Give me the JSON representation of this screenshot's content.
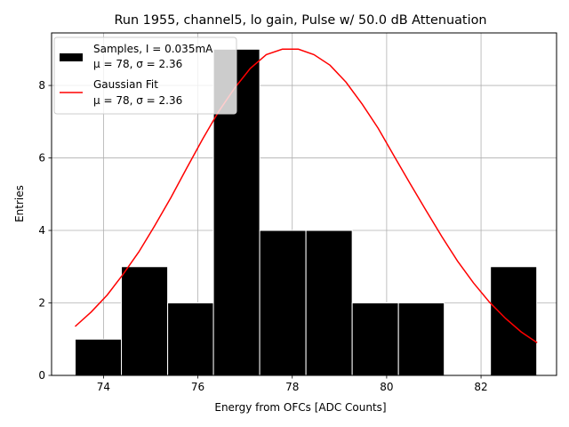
{
  "chart_data": {
    "type": "bar",
    "title": "Run 1955, channel5, lo gain, Pulse w/ 50.0 dB Attenuation",
    "xlabel": "Energy from OFCs [ADC Counts]",
    "ylabel": "Entries",
    "xlim": [
      72.9,
      83.6
    ],
    "ylim": [
      0,
      9.45
    ],
    "grid": true,
    "xticks": [
      74,
      76,
      78,
      80,
      82
    ],
    "yticks": [
      0,
      2,
      4,
      6,
      8
    ],
    "histogram": {
      "name": "Samples, I = 0.035mA",
      "stats": "μ = 78, σ = 2.36",
      "color": "#000000",
      "edge_color": "#ffffff",
      "bin_edges": [
        73.4,
        74.38,
        75.36,
        76.33,
        77.31,
        78.29,
        79.27,
        80.25,
        81.22,
        82.2,
        83.18
      ],
      "counts": [
        1,
        3,
        2,
        9,
        4,
        4,
        2,
        2,
        0,
        3
      ]
    },
    "fit": {
      "name": "Gaussian Fit",
      "stats": "μ = 78, σ = 2.36",
      "color": "#ff0000",
      "x": [
        73.4,
        73.74,
        74.08,
        74.41,
        74.75,
        75.09,
        75.43,
        75.76,
        76.1,
        76.44,
        76.78,
        77.11,
        77.45,
        77.79,
        78.13,
        78.46,
        78.8,
        79.14,
        79.48,
        79.82,
        80.15,
        80.49,
        80.83,
        81.17,
        81.5,
        81.84,
        82.18,
        82.52,
        82.85,
        83.19
      ],
      "y": [
        1.35,
        1.75,
        2.22,
        2.78,
        3.41,
        4.14,
        4.91,
        5.71,
        6.52,
        7.28,
        7.93,
        8.47,
        8.85,
        9.0,
        9.0,
        8.85,
        8.56,
        8.09,
        7.49,
        6.82,
        6.07,
        5.31,
        4.56,
        3.83,
        3.16,
        2.55,
        2.02,
        1.57,
        1.2,
        0.9
      ]
    },
    "legend": {
      "position": "top-left",
      "entries": [
        {
          "label": "Samples, I = 0.035mA",
          "sub": "μ = 78, σ = 2.36"
        },
        {
          "label": "Gaussian Fit",
          "sub": "μ = 78, σ = 2.36"
        }
      ]
    }
  }
}
